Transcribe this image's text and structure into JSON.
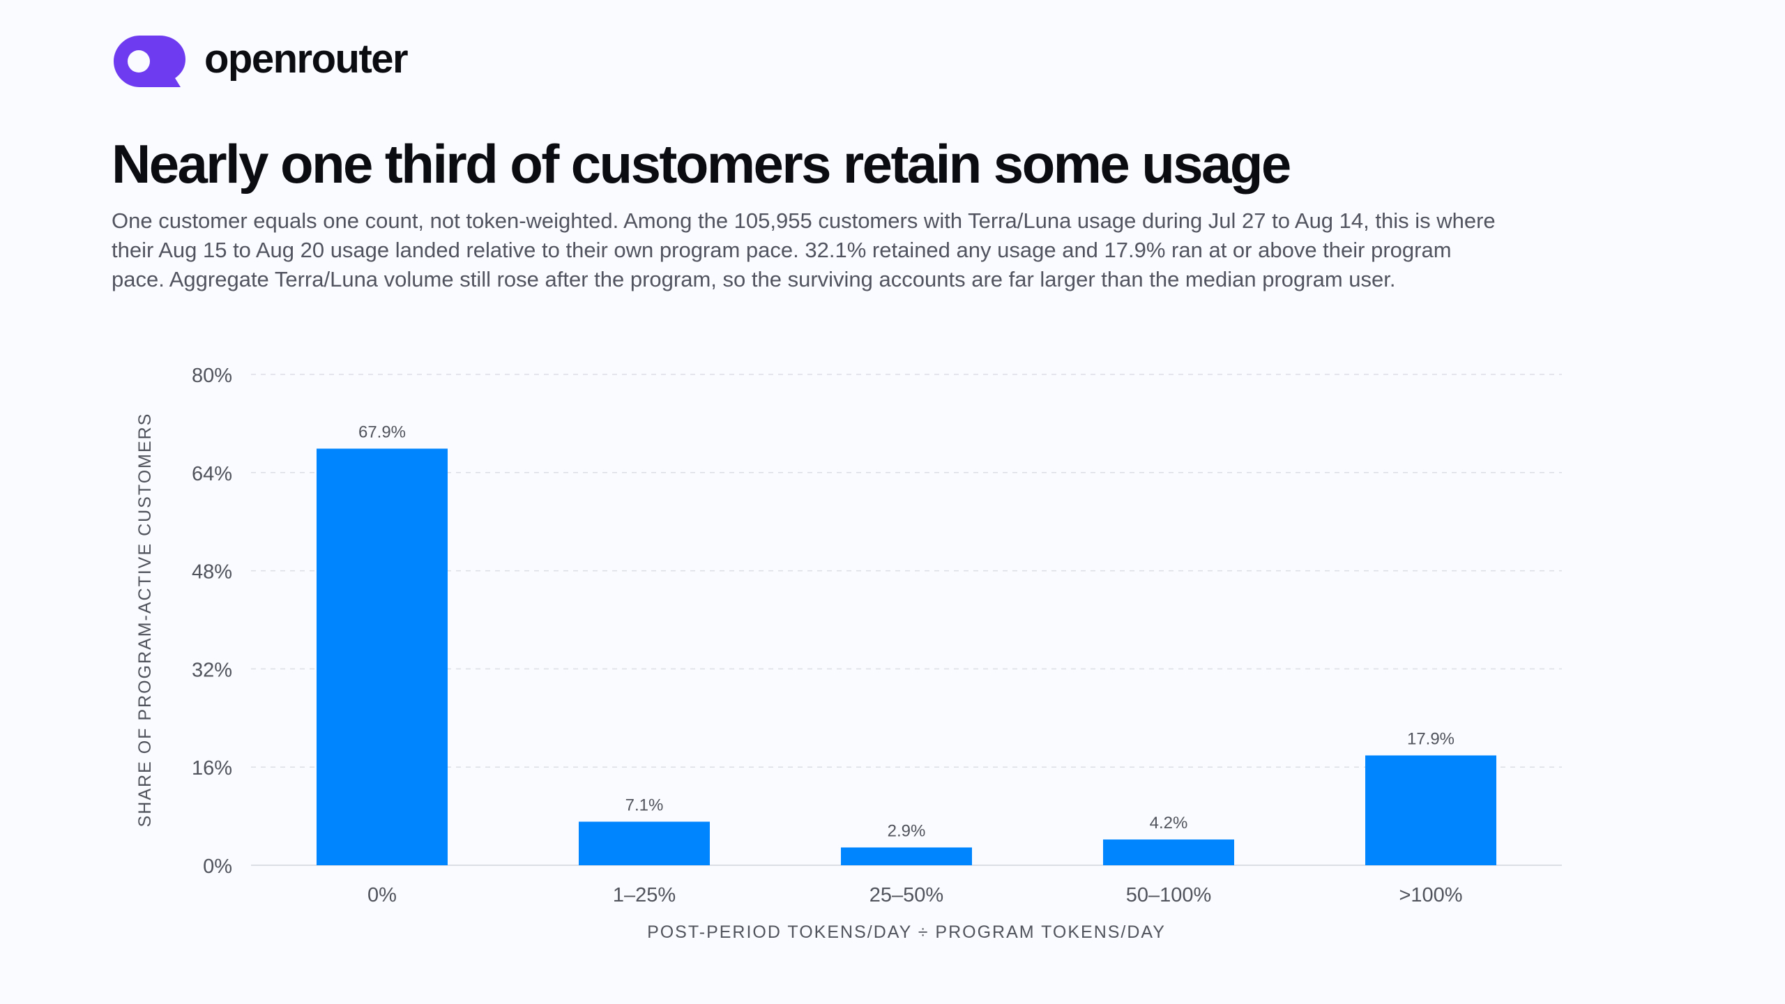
{
  "brand": {
    "name": "openrouter",
    "logo_icon": "openrouter-logo-icon",
    "logo_color": "#6e3bf0"
  },
  "headline": "Nearly one third of customers retain some usage",
  "subtitle": "One customer equals one count, not token-weighted. Among the 105,955 customers with Terra/Luna usage during Jul 27 to Aug 14, this is where their Aug 15 to Aug 20 usage landed relative to their own program pace. 32.1% retained any usage and 17.9% ran at or above their program pace. Aggregate Terra/Luna volume still rose after the program, so the surviving accounts are far larger than the median program user.",
  "colors": {
    "bar": "#0085ff",
    "grid": "#dcdee5",
    "axis_text": "#50535c"
  },
  "chart_data": {
    "type": "bar",
    "categories": [
      "0%",
      "1–25%",
      "25–50%",
      "50–100%",
      ">100%"
    ],
    "values": [
      67.9,
      7.1,
      2.9,
      4.2,
      17.9
    ],
    "data_labels": [
      "67.9%",
      "7.1%",
      "2.9%",
      "4.2%",
      "17.9%"
    ],
    "xlabel": "POST-PERIOD TOKENS/DAY ÷ PROGRAM TOKENS/DAY",
    "ylabel": "SHARE OF PROGRAM-ACTIVE CUSTOMERS",
    "ylim": [
      0,
      80
    ],
    "yticks": [
      0,
      16,
      32,
      48,
      64,
      80
    ],
    "ytick_labels": [
      "0%",
      "16%",
      "32%",
      "48%",
      "64%",
      "80%"
    ],
    "grid": true,
    "legend": "none"
  }
}
